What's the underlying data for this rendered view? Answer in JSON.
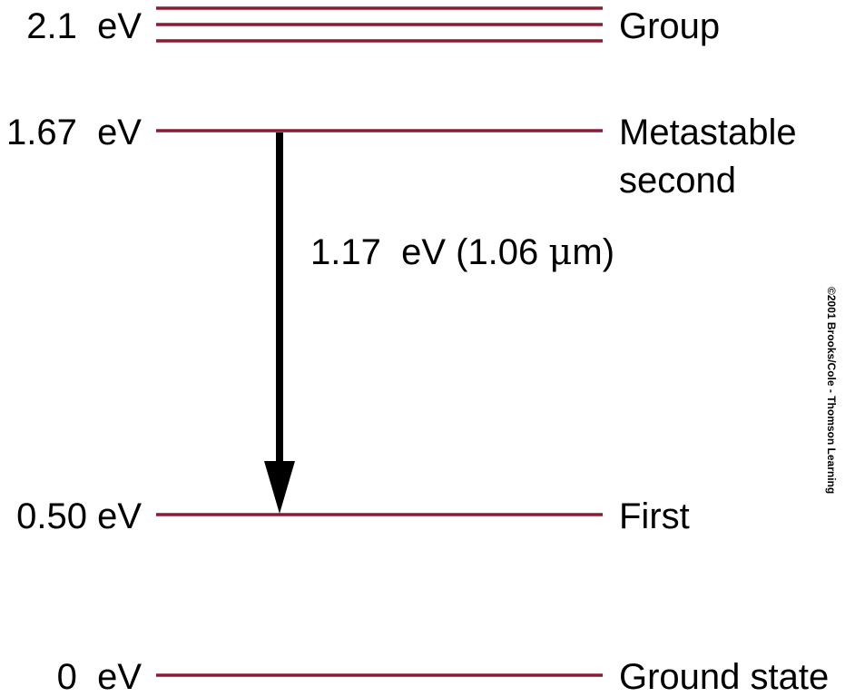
{
  "diagram": {
    "line_color": "#8b1a34",
    "arrow_color": "#000000",
    "levels": {
      "group": {
        "energy": "2.1  eV",
        "name": "Group"
      },
      "metastable": {
        "energy": "1.67  eV",
        "name_line1": "Metastable",
        "name_line2": "second"
      },
      "first": {
        "energy": "0.50 eV",
        "name": "First"
      },
      "ground": {
        "energy": "0  eV",
        "name": "Ground state"
      }
    },
    "transition": {
      "from": "metastable",
      "to": "first",
      "label_prefix": "1.17  eV (1.06 ",
      "label_mu": "μ",
      "label_suffix": "m)"
    },
    "credit": "©2001 Brooks/Cole - Thomson Learning"
  }
}
